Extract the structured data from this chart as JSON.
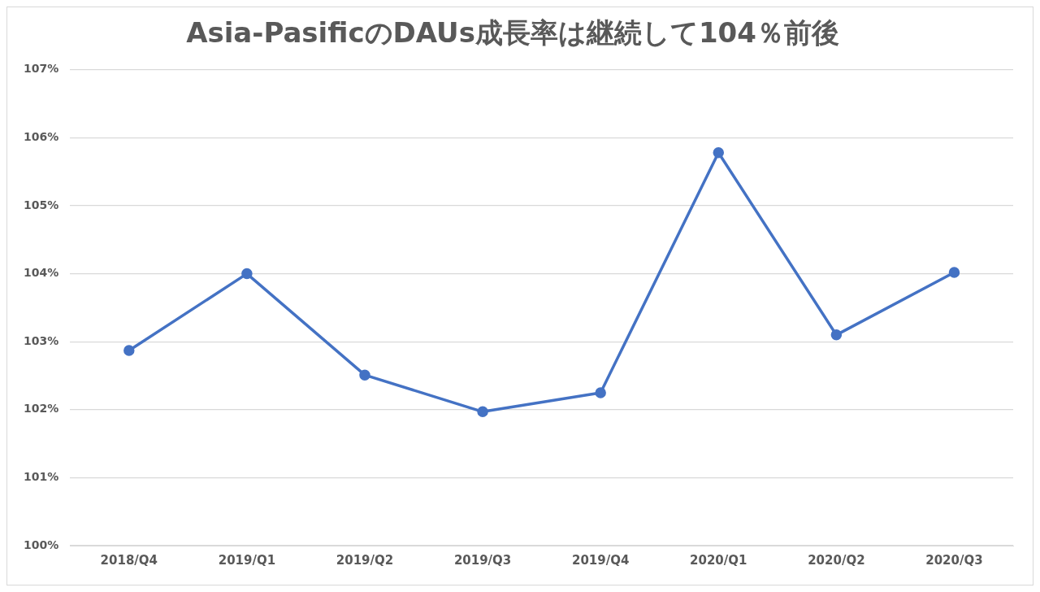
{
  "chart_data": {
    "type": "line",
    "title": "Asia-PasificのDAUs成長率は継続して104％前後",
    "categories": [
      "2018/Q4",
      "2019/Q1",
      "2019/Q2",
      "2019/Q3",
      "2019/Q4",
      "2020/Q1",
      "2020/Q2",
      "2020/Q3"
    ],
    "series": [
      {
        "color": "#4472c4",
        "values": [
          102.87,
          104.0,
          102.51,
          101.97,
          102.25,
          105.78,
          103.1,
          104.02
        ]
      }
    ],
    "ylim": [
      100,
      107
    ],
    "yticks": [
      {
        "value": 100,
        "label": "100%"
      },
      {
        "value": 101,
        "label": "101%"
      },
      {
        "value": 102,
        "label": "102%"
      },
      {
        "value": 103,
        "label": "103%"
      },
      {
        "value": 104,
        "label": "104%"
      },
      {
        "value": 105,
        "label": "105%"
      },
      {
        "value": 106,
        "label": "106%"
      },
      {
        "value": 107,
        "label": "107%"
      }
    ],
    "grid": "y",
    "legend": false,
    "marker": "circle",
    "line_style": "solid"
  }
}
